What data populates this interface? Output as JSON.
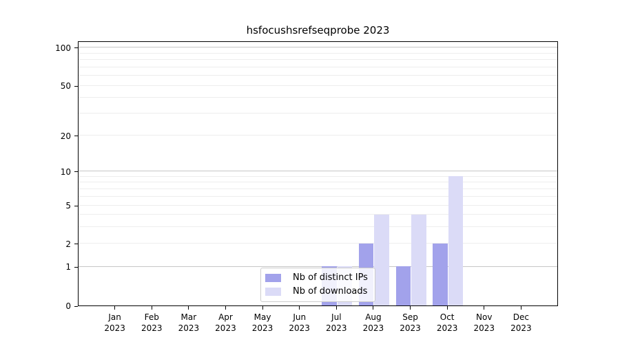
{
  "title": "hsfocushsrefseqprobe 2023",
  "chart_data": {
    "type": "bar",
    "title": "hsfocushsrefseqprobe 2023",
    "categories": [
      "Jan",
      "Feb",
      "Mar",
      "Apr",
      "May",
      "Jun",
      "Jul",
      "Aug",
      "Sep",
      "Oct",
      "Nov",
      "Dec"
    ],
    "year": "2023",
    "series": [
      {
        "name": "Nb of distinct IPs",
        "color": "#a2a2eb",
        "values": [
          0,
          0,
          0,
          0,
          0,
          0,
          1,
          2,
          1,
          2,
          0,
          0
        ]
      },
      {
        "name": "Nb of downloads",
        "color": "#dbdbf7",
        "values": [
          0,
          0,
          0,
          0,
          0,
          0,
          1,
          4,
          4,
          9,
          0,
          0
        ]
      }
    ],
    "yticks": [
      0,
      1,
      2,
      5,
      10,
      20,
      50,
      100
    ],
    "yscale": "symlog",
    "ylim": [
      0,
      115
    ],
    "xlabel": "",
    "ylabel": "",
    "grid": true,
    "legend_position": "lower center"
  }
}
